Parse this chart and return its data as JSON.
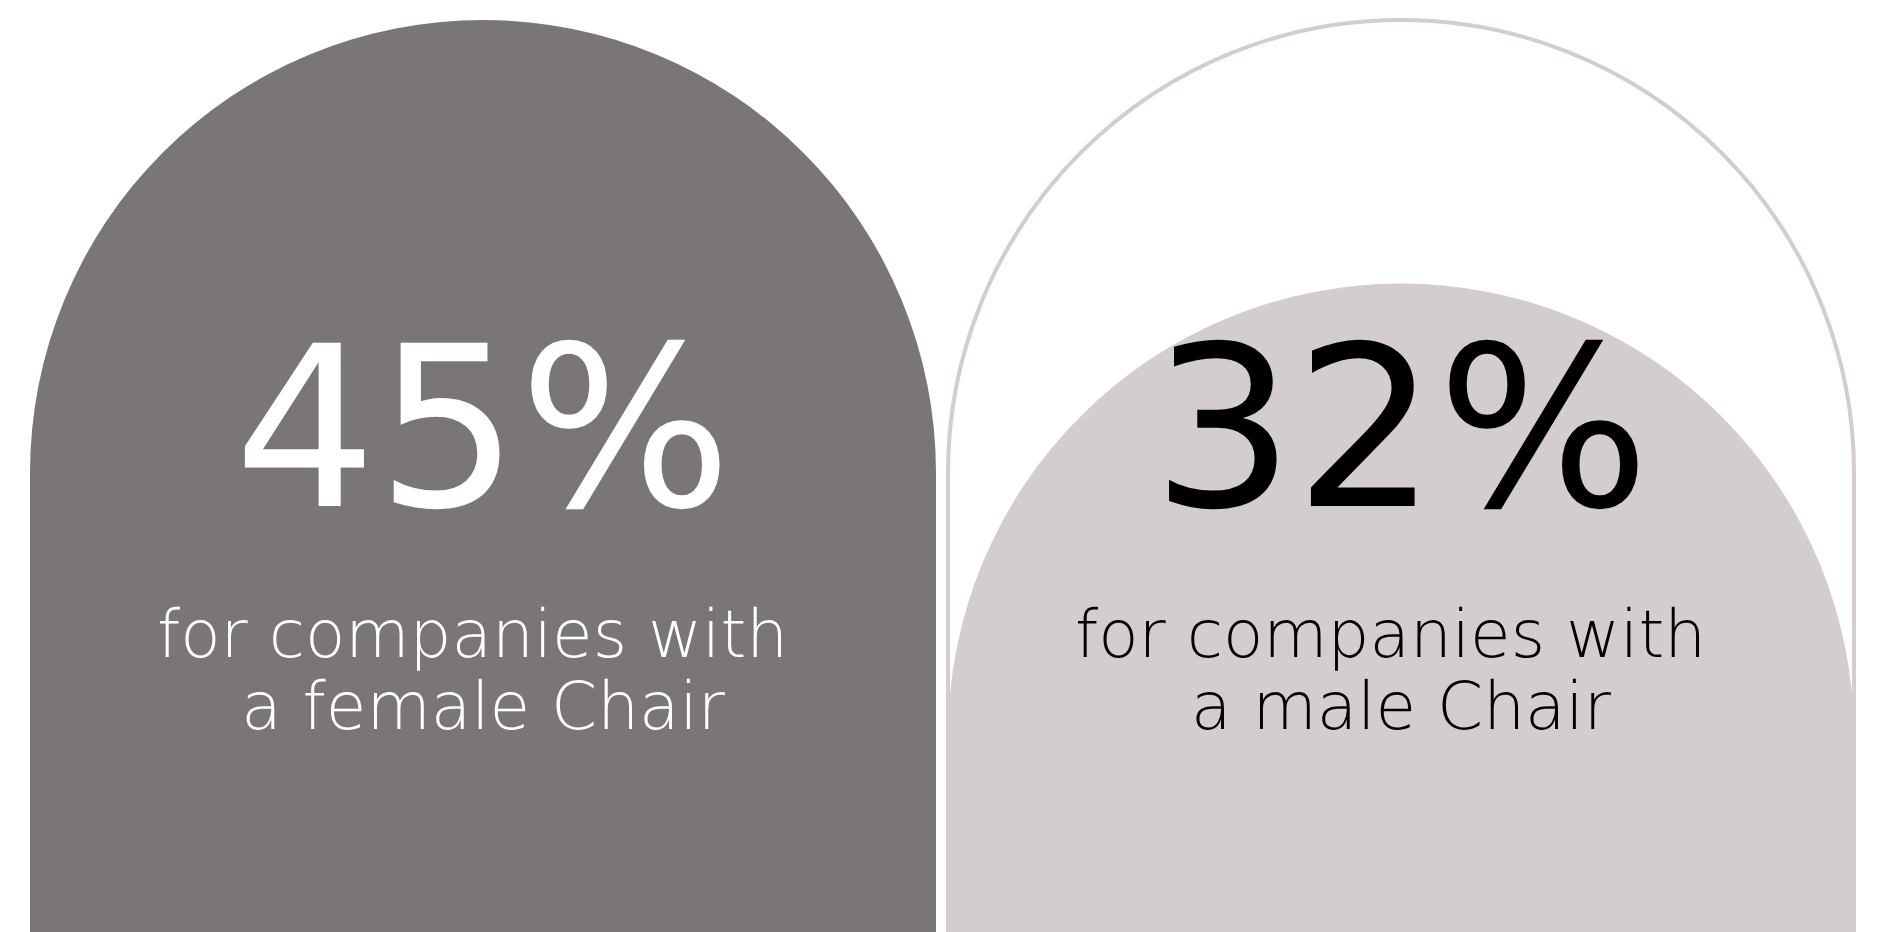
{
  "chart_data": {
    "type": "bar",
    "categories": [
      "for companies with a female Chair",
      "for companies with a male Chair"
    ],
    "values": [
      45,
      32
    ],
    "value_labels": [
      "45%",
      "32%"
    ],
    "colors": [
      "#7a7577",
      "#d3cecd"
    ],
    "tick_labels": "x"
  }
}
